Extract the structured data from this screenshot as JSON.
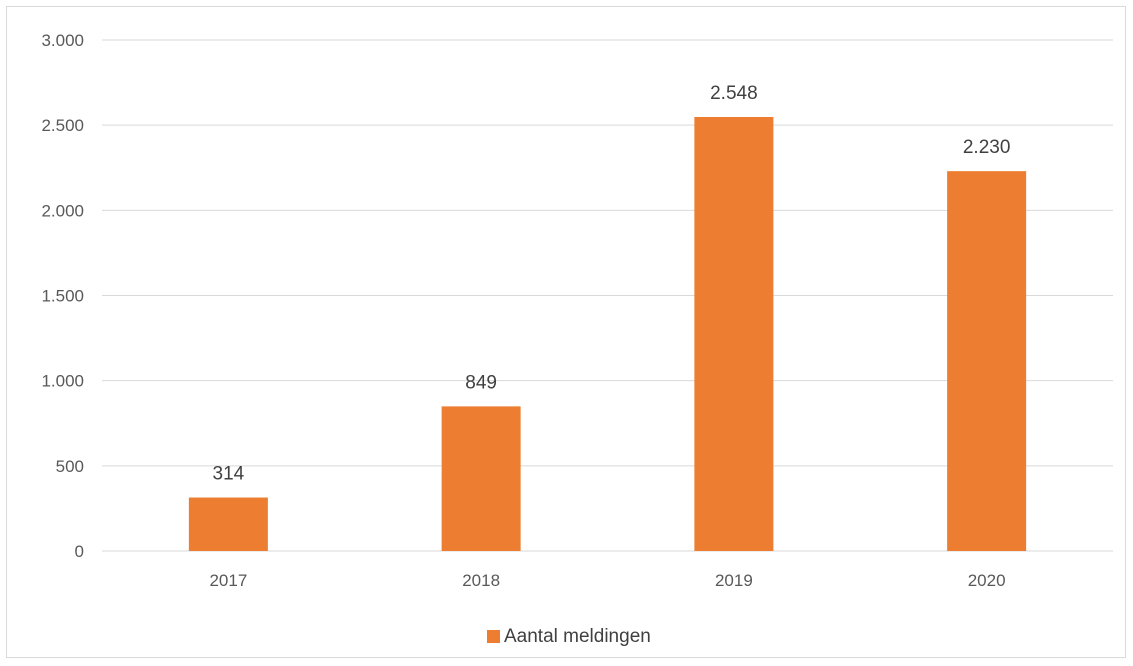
{
  "chart_data": {
    "type": "bar",
    "categories": [
      "2017",
      "2018",
      "2019",
      "2020"
    ],
    "series": [
      {
        "name": "Aantal meldingen",
        "values": [
          314,
          849,
          2548,
          2230
        ],
        "color": "#ED7D31"
      }
    ],
    "data_labels": [
      "314",
      "849",
      "2.548",
      "2.230"
    ],
    "y_ticks": [
      0,
      500,
      1000,
      1500,
      2000,
      2500,
      3000
    ],
    "y_tick_labels": [
      "0",
      "500",
      "1.000",
      "1.500",
      "2.000",
      "2.500",
      "3.000"
    ],
    "ylim": [
      0,
      3000
    ],
    "grid": true,
    "legend_position": "bottom",
    "title": "",
    "xlabel": "",
    "ylabel": ""
  }
}
